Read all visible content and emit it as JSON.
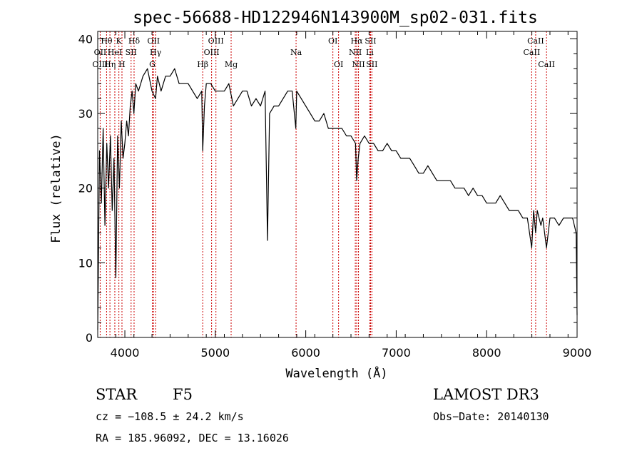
{
  "chart_data": {
    "type": "line",
    "title": "spec-56688-HD122946N143900M_sp02-031.fits",
    "xlabel": "Wavelength (Å)",
    "ylabel": "Flux (relative)",
    "xlim": [
      3700,
      9000
    ],
    "ylim": [
      0,
      41
    ],
    "xticks": [
      4000,
      5000,
      6000,
      7000,
      8000,
      9000
    ],
    "yticks": [
      0,
      10,
      20,
      30,
      40
    ],
    "grid": false,
    "series": [
      {
        "x": [
          3700,
          3720,
          3740,
          3760,
          3780,
          3800,
          3820,
          3840,
          3860,
          3880,
          3900,
          3920,
          3940,
          3960,
          3980,
          4000,
          4020,
          4040,
          4060,
          4080,
          4100,
          4120,
          4150,
          4200,
          4250,
          4300,
          4340,
          4360,
          4400,
          4450,
          4500,
          4550,
          4600,
          4650,
          4700,
          4750,
          4800,
          4850,
          4861,
          4880,
          4900,
          4950,
          5000,
          5050,
          5100,
          5150,
          5200,
          5250,
          5300,
          5350,
          5400,
          5450,
          5500,
          5550,
          5577,
          5600,
          5650,
          5700,
          5750,
          5800,
          5850,
          5890,
          5900,
          5950,
          6000,
          6050,
          6100,
          6150,
          6200,
          6250,
          6300,
          6350,
          6400,
          6450,
          6500,
          6550,
          6563,
          6580,
          6600,
          6650,
          6700,
          6750,
          6800,
          6850,
          6900,
          6950,
          7000,
          7050,
          7100,
          7150,
          7200,
          7250,
          7300,
          7350,
          7400,
          7450,
          7500,
          7550,
          7600,
          7650,
          7700,
          7750,
          7800,
          7850,
          7900,
          7950,
          8000,
          8050,
          8100,
          8150,
          8200,
          8250,
          8300,
          8350,
          8400,
          8450,
          8498,
          8520,
          8542,
          8560,
          8600,
          8620,
          8662,
          8700,
          8750,
          8800,
          8850,
          8900,
          8950,
          8990,
          9000
        ],
        "y": [
          1,
          25,
          18,
          28,
          15,
          26,
          20,
          27,
          17,
          24,
          8,
          27,
          20,
          29,
          24,
          26,
          29,
          27,
          31,
          33,
          30,
          34,
          33,
          35,
          36,
          33,
          32,
          35,
          33,
          35,
          35,
          36,
          34,
          34,
          34,
          33,
          32,
          33,
          25,
          31,
          34,
          34,
          33,
          33,
          33,
          34,
          31,
          32,
          33,
          33,
          31,
          32,
          31,
          33,
          13,
          30,
          31,
          31,
          32,
          33,
          33,
          28,
          33,
          32,
          31,
          30,
          29,
          29,
          30,
          28,
          28,
          28,
          28,
          27,
          27,
          26,
          21,
          24,
          26,
          27,
          26,
          26,
          25,
          25,
          26,
          25,
          25,
          24,
          24,
          24,
          23,
          22,
          22,
          23,
          22,
          21,
          21,
          21,
          21,
          20,
          20,
          20,
          19,
          20,
          19,
          19,
          18,
          18,
          18,
          19,
          18,
          17,
          17,
          17,
          16,
          16,
          12,
          17,
          14,
          17,
          15,
          16,
          12,
          16,
          16,
          15,
          16,
          16,
          16,
          14,
          3
        ]
      }
    ],
    "line_markers": [
      {
        "label": "Hθ",
        "x": 3798,
        "row": 1
      },
      {
        "label": "OII",
        "x": 3727,
        "row": 2
      },
      {
        "label": "OIII",
        "x": 3727,
        "row": 3
      },
      {
        "label": "K",
        "x": 3934,
        "row": 1
      },
      {
        "label": "HeI",
        "x": 3889,
        "row": 2
      },
      {
        "label": "Hη",
        "x": 3835,
        "row": 3
      },
      {
        "label": "Hδ",
        "x": 4102,
        "row": 1
      },
      {
        "label": "SII",
        "x": 4069,
        "row": 2
      },
      {
        "label": "H",
        "x": 3968,
        "row": 3
      },
      {
        "label": "OII",
        "x": 4317,
        "row": 1
      },
      {
        "label": "Hγ",
        "x": 4340,
        "row": 2
      },
      {
        "label": "G",
        "x": 4304,
        "row": 3
      },
      {
        "label": "Hβ",
        "x": 4861,
        "row": 3
      },
      {
        "label": "OIII",
        "x": 5007,
        "row": 1
      },
      {
        "label": "OIII",
        "x": 4959,
        "row": 2
      },
      {
        "label": "Mg",
        "x": 5175,
        "row": 3
      },
      {
        "label": "Na",
        "x": 5893,
        "row": 2
      },
      {
        "label": "OI",
        "x": 6300,
        "row": 1
      },
      {
        "label": "OI",
        "x": 6363,
        "row": 3
      },
      {
        "label": "Hα",
        "x": 6563,
        "row": 1
      },
      {
        "label": "SII",
        "x": 6717,
        "row": 1
      },
      {
        "label": "NII",
        "x": 6548,
        "row": 2
      },
      {
        "label": "Li",
        "x": 6708,
        "row": 2
      },
      {
        "label": "NII",
        "x": 6583,
        "row": 3
      },
      {
        "label": "SII",
        "x": 6731,
        "row": 3
      },
      {
        "label": "CaII",
        "x": 8542,
        "row": 1
      },
      {
        "label": "CaII",
        "x": 8498,
        "row": 2
      },
      {
        "label": "CaII",
        "x": 8662,
        "row": 3
      }
    ]
  },
  "info": {
    "object_class": "STAR",
    "subclass": "F5",
    "survey": "LAMOST DR3",
    "cz": "cz = −108.5 ± 24.2 km/s",
    "obs_date": "Obs−Date: 20140130",
    "coords": "RA = 185.96092, DEC =  13.16026"
  },
  "colors": {
    "spectrum": "#000000",
    "marker_lines": "#cc0000",
    "background": "#ffffff"
  }
}
